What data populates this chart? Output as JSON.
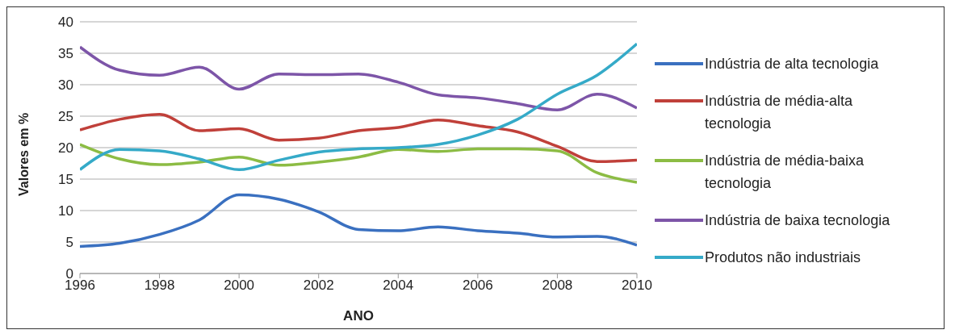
{
  "chart_data": {
    "type": "line",
    "xlabel": "ANO",
    "ylabel": "Valores em %",
    "x": [
      1996,
      1997,
      1998,
      1999,
      2000,
      2001,
      2002,
      2003,
      2004,
      2005,
      2006,
      2007,
      2008,
      2009,
      2010
    ],
    "xlim": [
      1996,
      2010
    ],
    "xticks": [
      1996,
      1998,
      2000,
      2002,
      2004,
      2006,
      2008,
      2010
    ],
    "ylim": [
      0,
      40
    ],
    "yticks": [
      0,
      5,
      10,
      15,
      20,
      25,
      30,
      35,
      40
    ],
    "grid": "y",
    "legend": "right",
    "marker": "none",
    "line_style": "solid",
    "series": [
      {
        "name": "Indústria de alta tecnologia",
        "color": "#3a70c0",
        "values": [
          4.3,
          4.8,
          6.2,
          8.5,
          12.5,
          11.8,
          9.8,
          7.0,
          6.8,
          7.4,
          6.8,
          6.4,
          5.8,
          5.9,
          4.5
        ]
      },
      {
        "name": "Indústria de média-alta tecnologia",
        "color": "#c0403a",
        "values": [
          22.8,
          24.5,
          25.3,
          22.7,
          23.0,
          21.2,
          21.5,
          22.7,
          23.2,
          24.4,
          23.5,
          22.5,
          20.2,
          17.8,
          18.0
        ]
      },
      {
        "name": "Indústria de média-baixa tecnologia",
        "color": "#8cbc44",
        "values": [
          20.5,
          18.2,
          17.3,
          17.7,
          18.5,
          17.2,
          17.7,
          18.5,
          19.7,
          19.4,
          19.8,
          19.8,
          19.5,
          16.0,
          14.5
        ]
      },
      {
        "name": "Indústria de baixa tecnologia",
        "color": "#7d55a8",
        "values": [
          36.0,
          32.3,
          31.5,
          32.8,
          29.3,
          31.7,
          31.6,
          31.7,
          30.4,
          28.4,
          27.9,
          27.0,
          26.0,
          28.5,
          26.3
        ]
      },
      {
        "name": "Produtos não industriais",
        "color": "#35aac8",
        "values": [
          16.5,
          19.7,
          19.5,
          18.2,
          16.5,
          18.0,
          19.3,
          19.8,
          20.0,
          20.5,
          22.0,
          24.5,
          28.5,
          31.5,
          36.5
        ]
      }
    ]
  }
}
